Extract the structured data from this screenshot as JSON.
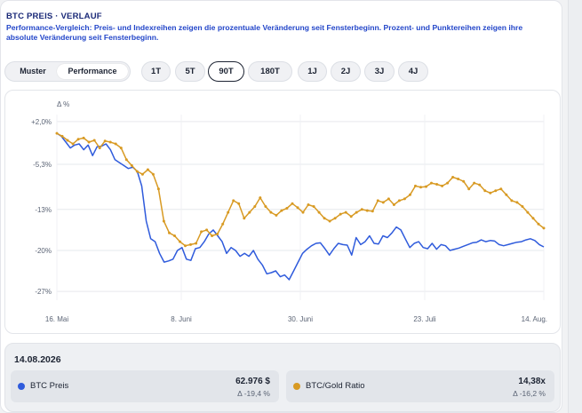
{
  "header": {
    "title": "BTC PREIS · VERLAUF",
    "subtitle": "Performance-Vergleich: Preis- und Indexreihen zeigen die prozentuale Veränderung seit Fensterbeginn. Prozent- und Punktereihen zeigen ihre absolute Veränderung seit Fensterbeginn."
  },
  "toolbar": {
    "mode": {
      "options": [
        "Muster",
        "Performance"
      ],
      "selected": "Performance"
    },
    "ranges": [
      "1T",
      "5T",
      "90T",
      "180T",
      "1J",
      "2J",
      "3J",
      "4J"
    ],
    "selected_range": "90T"
  },
  "colors": {
    "btc": "#2f5bdc",
    "ratio": "#d89a23",
    "accent": "#1b2a78",
    "subtitle": "#2346c9"
  },
  "chart_data": {
    "type": "line",
    "ylabel": "Δ %",
    "y_ticks": [
      "+2,0%",
      "-5,3%",
      "-13%",
      "-20%",
      "-27%"
    ],
    "y_tick_values": [
      2.0,
      -5.3,
      -13,
      -20,
      -27
    ],
    "ylim": [
      -28.5,
      3.2
    ],
    "xlim": [
      0,
      90
    ],
    "x_ticks": [
      "16. Mai",
      "8. Juni",
      "30. Juni",
      "23. Juli",
      "14. Aug."
    ],
    "x_tick_values": [
      0,
      23,
      45,
      68,
      90
    ],
    "grid": true,
    "series": [
      {
        "name": "BTC Preis",
        "color": "#2f5bdc",
        "values": [
          0,
          -0.5,
          -1.5,
          -2.5,
          -2.0,
          -1.8,
          -2.8,
          -2.0,
          -3.8,
          -2.3,
          -2.2,
          -1.8,
          -2.8,
          -4.5,
          -5.0,
          -5.5,
          -6.0,
          -5.8,
          -6.5,
          -9.0,
          -15.0,
          -18.0,
          -18.5,
          -20.5,
          -22.0,
          -21.8,
          -21.5,
          -20.0,
          -19.5,
          -21.5,
          -21.7,
          -19.7,
          -19.5,
          -18.5,
          -17.2,
          -16.5,
          -17.5,
          -18.5,
          -20.5,
          -19.5,
          -20.0,
          -21.0,
          -20.5,
          -21.0,
          -20.0,
          -21.5,
          -22.5,
          -24.0,
          -23.8,
          -23.5,
          -24.5,
          -24.2,
          -25.0,
          -23.5,
          -22.0,
          -20.5,
          -19.8,
          -19.2,
          -18.8,
          -18.7,
          -19.7,
          -20.8,
          -19.7,
          -18.8,
          -19.0,
          -19.1,
          -20.8,
          -17.8,
          -19.0,
          -18.5,
          -17.5,
          -18.8,
          -18.9,
          -17.5,
          -17.8,
          -17.0,
          -16.0,
          -16.5,
          -18.0,
          -19.5,
          -18.8,
          -18.5,
          -19.5,
          -19.7,
          -18.8,
          -19.8,
          -19.0,
          -19.2,
          -20.0,
          -19.8,
          -19.6,
          -19.3,
          -19.0,
          -18.7,
          -18.6,
          -18.2,
          -18.5,
          -18.3,
          -18.4,
          -19.0,
          -19.2,
          -19.0,
          -18.8,
          -18.6,
          -18.5,
          -18.2,
          -18.0,
          -18.3,
          -19.0,
          -19.4
        ],
        "final": -19.4
      },
      {
        "name": "BTC/Gold Ratio",
        "color": "#d89a23",
        "values": [
          0,
          -0.5,
          -1.2,
          -1.8,
          -1.0,
          -0.8,
          -1.5,
          -1.2,
          -2.5,
          -1.3,
          -1.5,
          -1.8,
          -2.5,
          -4.5,
          -5.5,
          -6.5,
          -7.0,
          -6.2,
          -7.0,
          -9.5,
          -15.0,
          -17.0,
          -17.5,
          -18.5,
          -19.2,
          -19.0,
          -18.8,
          -16.8,
          -16.5,
          -17.5,
          -17.2,
          -15.5,
          -13.5,
          -11.5,
          -12.0,
          -14.5,
          -13.5,
          -12.5,
          -11.0,
          -12.5,
          -13.5,
          -14.0,
          -13.2,
          -12.8,
          -12.0,
          -12.7,
          -13.5,
          -12.2,
          -12.5,
          -13.5,
          -14.5,
          -15.0,
          -14.5,
          -13.8,
          -13.5,
          -14.2,
          -13.5,
          -13.0,
          -13.2,
          -13.3,
          -11.5,
          -11.8,
          -11.2,
          -12.2,
          -11.5,
          -11.2,
          -10.5,
          -9.0,
          -9.2,
          -9.1,
          -8.5,
          -8.7,
          -9.0,
          -8.5,
          -7.5,
          -7.8,
          -8.2,
          -9.5,
          -8.5,
          -8.8,
          -9.8,
          -10.2,
          -9.8,
          -9.5,
          -10.5,
          -11.5,
          -11.8,
          -12.5,
          -13.5,
          -14.5,
          -15.5,
          -16.2
        ],
        "final": -16.2
      }
    ]
  },
  "footer": {
    "date": "14.08.2026",
    "items": [
      {
        "name": "BTC Preis",
        "value": "62.976 $",
        "change": "Δ -19,4 %",
        "color": "#2f5bdc"
      },
      {
        "name": "BTC/Gold Ratio",
        "value": "14,38x",
        "change": "Δ -16,2 %",
        "color": "#d89a23"
      }
    ]
  }
}
